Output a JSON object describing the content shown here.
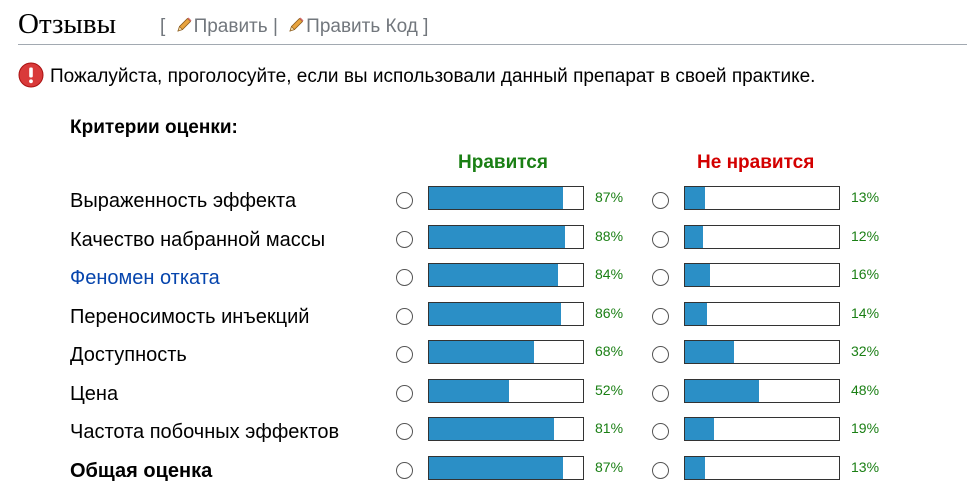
{
  "section": {
    "title": "Отзывы",
    "bracket_open": "[",
    "edit_label": "Править",
    "separator": "|",
    "edit_code_label": "Править Код",
    "bracket_close": "]"
  },
  "notice": {
    "icon": "exclamation-icon",
    "text": "Пожалуйста, проголосуйте, если вы использовали данный препарат в своей практике."
  },
  "criteria_title": "Критерии оценки:",
  "columns": {
    "like": "Нравится",
    "dislike": "Не нравится"
  },
  "colors": {
    "bar_fill": "#2b8fc6",
    "like": "#1a7f14",
    "dislike": "#d30000",
    "link": "#0645ad"
  },
  "rows": [
    {
      "label": "Выраженность эффекта",
      "like": 87,
      "like_text": "87%",
      "dislike": 13,
      "dislike_text": "13%"
    },
    {
      "label": "Качество набранной массы",
      "like": 88,
      "like_text": "88%",
      "dislike": 12,
      "dislike_text": "12%"
    },
    {
      "label": "Феномен отката",
      "like": 84,
      "like_text": "84%",
      "dislike": 16,
      "dislike_text": "16%",
      "is_link": true
    },
    {
      "label": "Переносимость инъекций",
      "like": 86,
      "like_text": "86%",
      "dislike": 14,
      "dislike_text": "14%"
    },
    {
      "label": "Доступность",
      "like": 68,
      "like_text": "68%",
      "dislike": 32,
      "dislike_text": "32%"
    },
    {
      "label": "Цена",
      "like": 52,
      "like_text": "52%",
      "dislike": 48,
      "dislike_text": "48%"
    },
    {
      "label": "Частота побочных эффектов",
      "like": 81,
      "like_text": "81%",
      "dislike": 19,
      "dislike_text": "19%"
    },
    {
      "label": "Общая оценка",
      "like": 87,
      "like_text": "87%",
      "dislike": 13,
      "dislike_text": "13%",
      "is_bold": true
    }
  ]
}
